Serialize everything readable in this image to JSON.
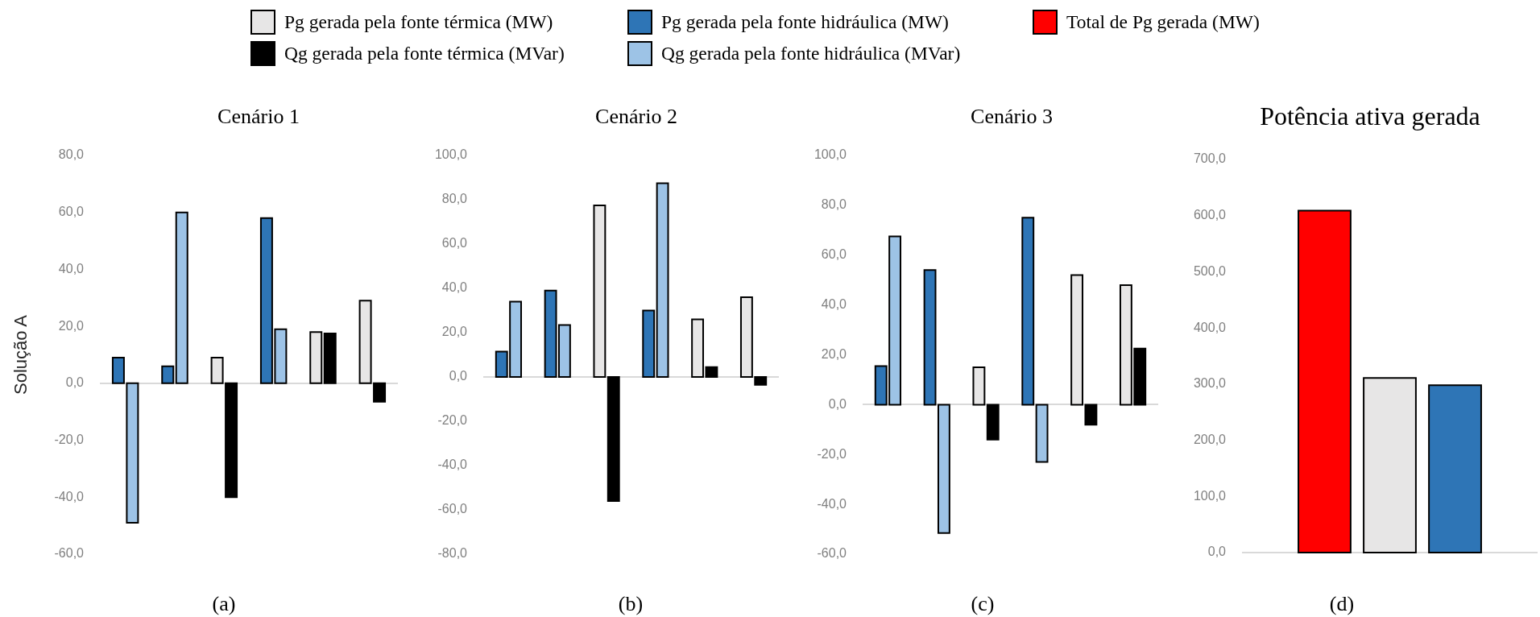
{
  "chart_data": [
    {
      "type": "bar",
      "title": "Cenário 1",
      "ylabel": "Solução A",
      "annotations": [
        "(a)"
      ],
      "legend": "top",
      "tick_labels": "y",
      "categories": [
        null,
        null,
        null,
        null,
        null,
        null
      ],
      "series": [
        {
          "name": "Pg gerada pela fonte térmica (MW)",
          "color": "#e7e6e6",
          "values": [
            null,
            null,
            9,
            null,
            18,
            29
          ]
        },
        {
          "name": "Qg gerada pela fonte térmica (MVar)",
          "color": "#000000",
          "values": [
            null,
            null,
            -40,
            null,
            17.5,
            -6.5
          ]
        },
        {
          "name": "Pg gerada pela fonte hidráulica (MW)",
          "color": "#2e75b6",
          "values": [
            9,
            6,
            null,
            58,
            null,
            null
          ]
        },
        {
          "name": "Qg gerada pela fonte hidráulica (MVar)",
          "color": "#9dc3e6",
          "values": [
            -49,
            60,
            null,
            19,
            null,
            null
          ]
        }
      ],
      "ylim": [
        -60,
        80
      ],
      "yticks": [
        {
          "value": -60,
          "label": "-60,0"
        },
        {
          "value": -40,
          "label": "-40,0"
        },
        {
          "value": -20,
          "label": "-20,0"
        },
        {
          "value": 0,
          "label": "0,0"
        },
        {
          "value": 20,
          "label": "20,0"
        },
        {
          "value": 40,
          "label": "40,0"
        },
        {
          "value": 60,
          "label": "60,0"
        },
        {
          "value": 80,
          "label": "80,0"
        }
      ]
    },
    {
      "type": "bar",
      "title": "Cenário 2",
      "annotations": [
        "(b)"
      ],
      "tick_labels": "y",
      "categories": [
        null,
        null,
        null,
        null,
        null,
        null
      ],
      "series": [
        {
          "name": "Pg gerada pela fonte térmica (MW)",
          "color": "#e7e6e6",
          "values": [
            null,
            null,
            77.5,
            null,
            26,
            36
          ]
        },
        {
          "name": "Qg gerada pela fonte térmica (MVar)",
          "color": "#000000",
          "values": [
            null,
            null,
            -56,
            null,
            4.5,
            -3.5
          ]
        },
        {
          "name": "Pg gerada pela fonte hidráulica (MW)",
          "color": "#2e75b6",
          "values": [
            11.5,
            39,
            null,
            30,
            null,
            null
          ]
        },
        {
          "name": "Qg gerada pela fonte hidráulica (MVar)",
          "color": "#9dc3e6",
          "values": [
            34,
            23.5,
            null,
            87.5,
            null,
            null
          ]
        }
      ],
      "ylim": [
        -80,
        100
      ],
      "yticks": [
        {
          "value": -80,
          "label": "-80,0"
        },
        {
          "value": -60,
          "label": "-60,0"
        },
        {
          "value": -40,
          "label": "-40,0"
        },
        {
          "value": -20,
          "label": "-20,0"
        },
        {
          "value": 0,
          "label": "0,0"
        },
        {
          "value": 20,
          "label": "20,0"
        },
        {
          "value": 40,
          "label": "40,0"
        },
        {
          "value": 60,
          "label": "60,0"
        },
        {
          "value": 80,
          "label": "80,0"
        },
        {
          "value": 100,
          "label": "100,0"
        }
      ]
    },
    {
      "type": "bar",
      "title": "Cenário 3",
      "annotations": [
        "(c)"
      ],
      "tick_labels": "y",
      "categories": [
        null,
        null,
        null,
        null,
        null,
        null
      ],
      "series": [
        {
          "name": "Pg gerada pela fonte térmica (MW)",
          "color": "#e7e6e6",
          "values": [
            null,
            null,
            15,
            null,
            52,
            48
          ]
        },
        {
          "name": "Qg gerada pela fonte térmica (MVar)",
          "color": "#000000",
          "values": [
            null,
            null,
            -14,
            null,
            -8,
            22.5
          ]
        },
        {
          "name": "Pg gerada pela fonte hidráulica (MW)",
          "color": "#2e75b6",
          "values": [
            15.5,
            54,
            null,
            75,
            null,
            null
          ]
        },
        {
          "name": "Qg gerada pela fonte hidráulica (MVar)",
          "color": "#9dc3e6",
          "values": [
            67.5,
            -51.5,
            null,
            -23,
            null,
            null
          ]
        }
      ],
      "ylim": [
        -60,
        100
      ],
      "yticks": [
        {
          "value": -60,
          "label": "-60,0"
        },
        {
          "value": -40,
          "label": "-40,0"
        },
        {
          "value": -20,
          "label": "-20,0"
        },
        {
          "value": 0,
          "label": "0,0"
        },
        {
          "value": 20,
          "label": "20,0"
        },
        {
          "value": 40,
          "label": "40,0"
        },
        {
          "value": 60,
          "label": "60,0"
        },
        {
          "value": 80,
          "label": "80,0"
        },
        {
          "value": 100,
          "label": "100,0"
        }
      ]
    },
    {
      "type": "bar",
      "title": "Potência ativa gerada",
      "annotations": [
        "(d)"
      ],
      "legend": "top",
      "tick_labels": "y",
      "categories": [
        null
      ],
      "series": [
        {
          "name": "Total de Pg gerada (MW)",
          "color": "#ff0000",
          "values": [
            609
          ]
        },
        {
          "name": "Pg gerada pela fonte térmica (MW)",
          "color": "#e7e6e6",
          "values": [
            311
          ]
        },
        {
          "name": "Pg gerada pela fonte hidráulica (MW)",
          "color": "#2e75b6",
          "values": [
            298
          ]
        }
      ],
      "ylim": [
        0,
        700
      ],
      "yticks": [
        {
          "value": 0,
          "label": "0,0"
        },
        {
          "value": 100,
          "label": "100,0"
        },
        {
          "value": 200,
          "label": "200,0"
        },
        {
          "value": 300,
          "label": "300,0"
        },
        {
          "value": 400,
          "label": "400,0"
        },
        {
          "value": 500,
          "label": "500,0"
        },
        {
          "value": 600,
          "label": "600,0"
        },
        {
          "value": 700,
          "label": "700,0"
        }
      ]
    }
  ]
}
